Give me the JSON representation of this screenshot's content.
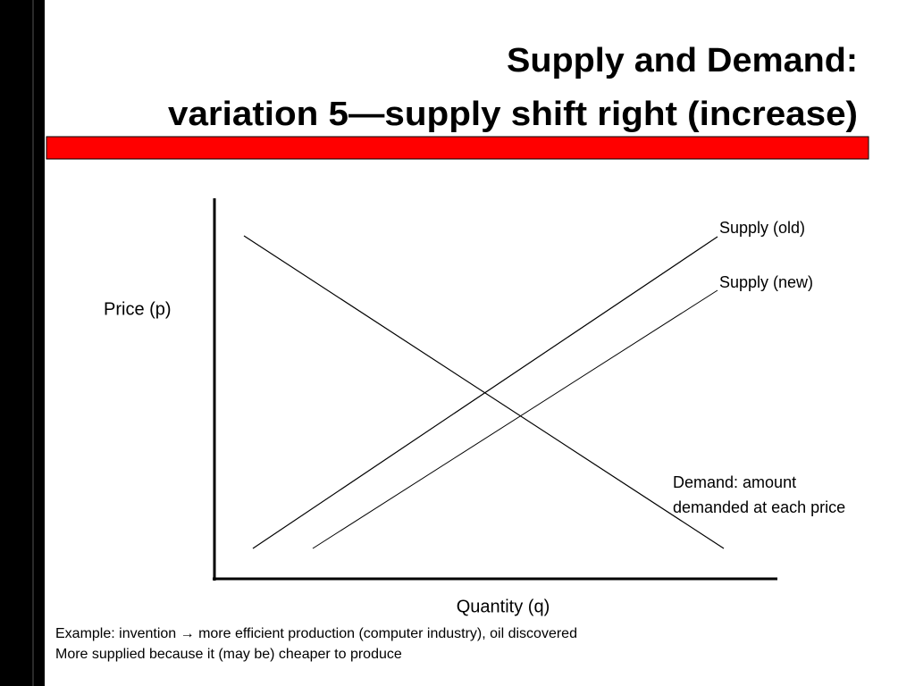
{
  "title": {
    "line1": "Supply and Demand:",
    "line2": "variation 5—supply shift right (increase)"
  },
  "diagram": {
    "y_axis_label": "Price (p)",
    "x_axis_label": "Quantity (q)",
    "curves": [
      {
        "label": "Supply (old)"
      },
      {
        "label": "Supply (new)"
      },
      {
        "label": [
          "Demand: amount",
          "demanded at each price"
        ]
      }
    ]
  },
  "notes": [
    "Example: invention → more efficient production (computer industry), oil discovered",
    "More supplied because it (may be) cheaper to produce"
  ]
}
